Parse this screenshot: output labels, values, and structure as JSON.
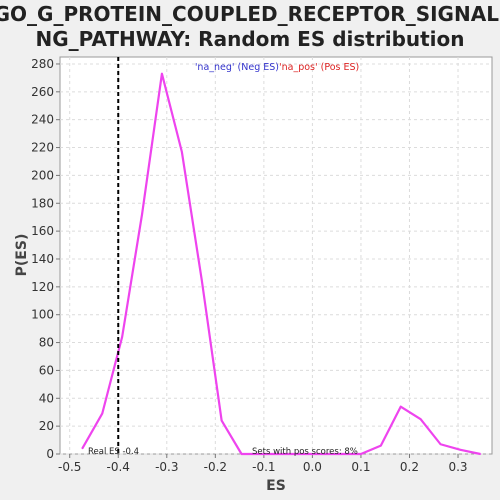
{
  "chart_data": {
    "type": "line",
    "title_line1": "GO_G_PROTEIN_COUPLED_RECEPTOR_SIGNALI",
    "title_line2": "NG_PATHWAY: Random ES distribution",
    "xlabel": "ES",
    "ylabel": "P(ES)",
    "xlim": [
      -0.52,
      0.37
    ],
    "ylim": [
      0,
      285
    ],
    "x_ticks": [
      -0.5,
      -0.4,
      -0.3,
      -0.2,
      -0.1,
      0.0,
      0.1,
      0.2,
      0.3
    ],
    "x_tick_labels": [
      "-0.5",
      "-0.4",
      "-0.3",
      "-0.2",
      "-0.1",
      "0.0",
      "0.1",
      "0.2",
      "0.3"
    ],
    "y_ticks": [
      0,
      20,
      40,
      60,
      80,
      100,
      120,
      140,
      160,
      180,
      200,
      220,
      240,
      260,
      280
    ],
    "grid": true,
    "legend": [
      {
        "name": "'na_neg' (Neg ES)",
        "color": "#3333cc"
      },
      {
        "name": "'na_pos' (Pos ES)",
        "color": "#dd2222"
      }
    ],
    "legend_position": "top-center",
    "series": [
      {
        "color": "#ee44ee",
        "x": [
          -0.474,
          -0.433,
          -0.392,
          -0.351,
          -0.31,
          -0.269,
          -0.228,
          -0.187,
          -0.146,
          -0.105,
          -0.064,
          -0.023,
          0.018,
          0.059,
          0.1,
          0.141,
          0.182,
          0.223,
          0.264,
          0.305,
          0.346
        ],
        "y": [
          4,
          29,
          84,
          172,
          273,
          217,
          125,
          24,
          0,
          0,
          0,
          0,
          0,
          0,
          0,
          6,
          34,
          25,
          7,
          3,
          0
        ]
      }
    ],
    "real_es": -0.4,
    "annotations": {
      "real_es": "Real ES -0.4",
      "pos_scores": "Sets with pos scores: 8%"
    }
  }
}
